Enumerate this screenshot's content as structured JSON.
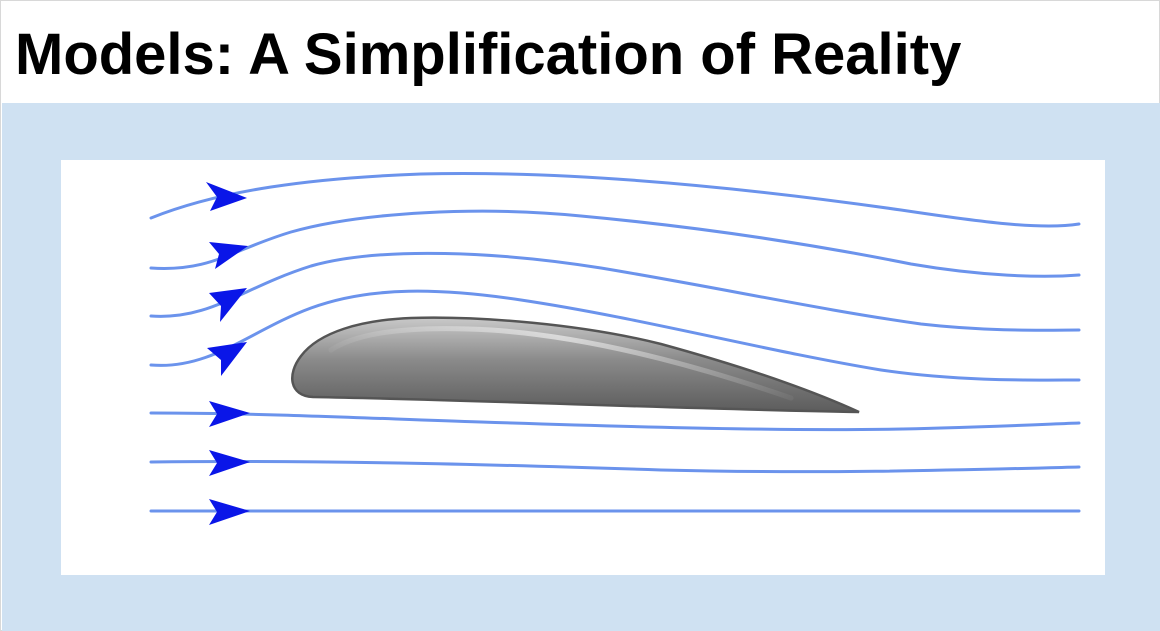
{
  "slide": {
    "title": "Models: A Simplification of Reality"
  },
  "figure": {
    "icon": "airfoil-streamlines-icon",
    "colors": {
      "streamline": "#6b93ec",
      "arrowhead": "#0a16e8",
      "airfoil_light": "#c9c9c9",
      "airfoil_dark": "#5c5c5c",
      "airfoil_outline": "#555555",
      "panel_background": "#cfe1f2"
    }
  }
}
